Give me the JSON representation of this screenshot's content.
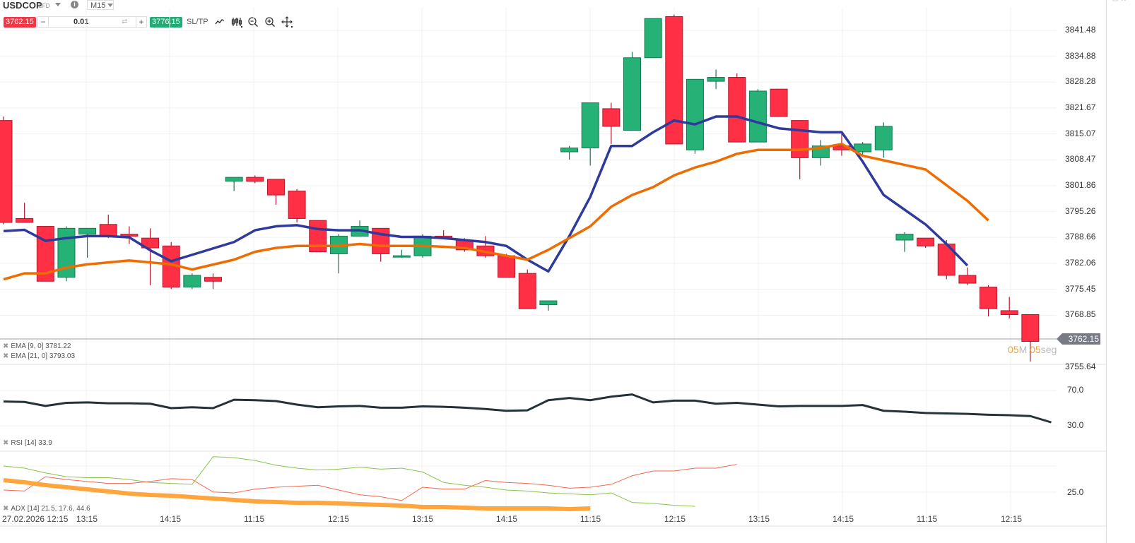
{
  "toolbar": {
    "symbol": "USDCOP",
    "symbol_type": "CFD",
    "info_icon": "i",
    "timeframe": "M15",
    "sell_price": "3762.15",
    "quantity": "0.01",
    "minus": "−",
    "plus": "+",
    "swap": "⇄",
    "buy_price": "3776.15",
    "sltp_label": "SL/TP",
    "tools": [
      "line-chart-icon",
      "candlestick-icon",
      "zoom-out-icon",
      "zoom-in-icon",
      "crosshair-move-icon"
    ]
  },
  "window_controls": "▭ ✕",
  "main_chart": {
    "price_axis": [
      "3841.48",
      "3834.88",
      "3828.28",
      "3821.67",
      "3815.07",
      "3808.47",
      "3801.86",
      "3795.26",
      "3788.66",
      "3782.06",
      "3775.45",
      "3768.85",
      "3755.64"
    ],
    "current_price": "3762.15",
    "countdown": {
      "min": "05",
      "min_unit": "M",
      "sec": "05",
      "sec_unit": "seg"
    },
    "legend": [
      {
        "label": "EMA [9, 0] 3781.22",
        "color": "#2e3a9c"
      },
      {
        "label": "EMA [21, 0] 3793.03",
        "color": "#ef6c00"
      }
    ]
  },
  "rsi_panel": {
    "axis": [
      "70.0",
      "30.0"
    ],
    "legend": "RSI [14] 33.9"
  },
  "adx_panel": {
    "axis": [
      "25.0"
    ],
    "legend": "ADX [14] 21.5, 17.6, 44.6"
  },
  "time_axis": [
    "27.02.2026 12:15",
    "13:15",
    "14:15",
    "11:15",
    "12:15",
    "13:15",
    "14:15",
    "11:15",
    "12:15",
    "13:15",
    "14:15",
    "11:15",
    "12:15"
  ],
  "colors": {
    "up": "#26b276",
    "down": "#ff2f45",
    "ema9": "#2e3a9c",
    "ema21": "#ef6c00",
    "rsi": "#263238",
    "adx": "#ffa53b",
    "di_plus": "#8bc34a",
    "di_minus": "#f4694f"
  },
  "chart_data": {
    "type": "candlestick",
    "title": "USDCOP CFD M15",
    "xlabel": "",
    "ylabel": "",
    "ylim": [
      3755.64,
      3845
    ],
    "grid": true,
    "legend_position": "bottom-left",
    "candles": [
      {
        "o": 3818.5,
        "h": 3819.5,
        "l": 3792.0,
        "c": 3792.5
      },
      {
        "o": 3793.5,
        "h": 3797.5,
        "l": 3792.5,
        "c": 3792.5
      },
      {
        "o": 3791.5,
        "h": 3791.5,
        "l": 3777.5,
        "c": 3777.5
      },
      {
        "o": 3778.5,
        "h": 3791.5,
        "l": 3777.5,
        "c": 3791.0
      },
      {
        "o": 3789.5,
        "h": 3791.0,
        "l": 3783.5,
        "c": 3791.0
      },
      {
        "o": 3792.0,
        "h": 3794.5,
        "l": 3788.5,
        "c": 3789.0
      },
      {
        "o": 3789.5,
        "h": 3791.5,
        "l": 3787.0,
        "c": 3789.0
      },
      {
        "o": 3788.5,
        "h": 3791.0,
        "l": 3776.5,
        "c": 3786.0
      },
      {
        "o": 3786.5,
        "h": 3787.5,
        "l": 3775.5,
        "c": 3776.0
      },
      {
        "o": 3776.0,
        "h": 3779.5,
        "l": 3775.5,
        "c": 3779.0
      },
      {
        "o": 3778.5,
        "h": 3779.5,
        "l": 3775.5,
        "c": 3777.5
      },
      {
        "o": 3803.0,
        "h": 3804.0,
        "l": 3800.5,
        "c": 3804.0
      },
      {
        "o": 3804.0,
        "h": 3804.5,
        "l": 3802.5,
        "c": 3803.0
      },
      {
        "o": 3803.5,
        "h": 3803.5,
        "l": 3797.0,
        "c": 3799.5
      },
      {
        "o": 3800.5,
        "h": 3801.0,
        "l": 3792.5,
        "c": 3793.5
      },
      {
        "o": 3793.0,
        "h": 3793.0,
        "l": 3785.0,
        "c": 3785.0
      },
      {
        "o": 3784.5,
        "h": 3789.5,
        "l": 3779.5,
        "c": 3789.0
      },
      {
        "o": 3789.0,
        "h": 3793.0,
        "l": 3789.0,
        "c": 3791.5
      },
      {
        "o": 3791.0,
        "h": 3791.0,
        "l": 3782.5,
        "c": 3784.5
      },
      {
        "o": 3784.0,
        "h": 3785.5,
        "l": 3783.5,
        "c": 3784.0
      },
      {
        "o": 3784.0,
        "h": 3789.5,
        "l": 3783.5,
        "c": 3789.0
      },
      {
        "o": 3789.0,
        "h": 3790.5,
        "l": 3788.5,
        "c": 3788.5
      },
      {
        "o": 3788.0,
        "h": 3788.5,
        "l": 3785.0,
        "c": 3785.5
      },
      {
        "o": 3786.5,
        "h": 3789.0,
        "l": 3783.5,
        "c": 3784.0
      },
      {
        "o": 3784.0,
        "h": 3784.5,
        "l": 3778.5,
        "c": 3778.5
      },
      {
        "o": 3779.5,
        "h": 3780.5,
        "l": 3770.5,
        "c": 3770.5
      },
      {
        "o": 3771.5,
        "h": 3772.5,
        "l": 3770.0,
        "c": 3772.5
      },
      {
        "o": 3810.5,
        "h": 3812.0,
        "l": 3808.5,
        "c": 3811.5
      },
      {
        "o": 3811.5,
        "h": 3821.5,
        "l": 3807.0,
        "c": 3823.0
      },
      {
        "o": 3821.5,
        "h": 3823.0,
        "l": 3812.5,
        "c": 3817.0
      },
      {
        "o": 3816.0,
        "h": 3836.0,
        "l": 3816.0,
        "c": 3834.5
      },
      {
        "o": 3834.5,
        "h": 3844.5,
        "l": 3834.5,
        "c": 3844.5
      },
      {
        "o": 3845.0,
        "h": 3845.5,
        "l": 3812.5,
        "c": 3812.5
      },
      {
        "o": 3811.0,
        "h": 3829.0,
        "l": 3810.0,
        "c": 3829.0
      },
      {
        "o": 3828.5,
        "h": 3831.5,
        "l": 3826.5,
        "c": 3829.5
      },
      {
        "o": 3829.5,
        "h": 3830.5,
        "l": 3813.0,
        "c": 3813.0
      },
      {
        "o": 3813.0,
        "h": 3826.5,
        "l": 3813.0,
        "c": 3826.0
      },
      {
        "o": 3826.5,
        "h": 3826.5,
        "l": 3819.5,
        "c": 3819.5
      },
      {
        "o": 3818.5,
        "h": 3818.5,
        "l": 3803.5,
        "c": 3809.0
      },
      {
        "o": 3809.0,
        "h": 3813.5,
        "l": 3807.0,
        "c": 3812.0
      },
      {
        "o": 3812.0,
        "h": 3815.0,
        "l": 3809.5,
        "c": 3811.0
      },
      {
        "o": 3810.5,
        "h": 3813.0,
        "l": 3809.5,
        "c": 3812.5
      },
      {
        "o": 3811.0,
        "h": 3818.0,
        "l": 3809.0,
        "c": 3817.0
      },
      {
        "o": 3788.0,
        "h": 3790.0,
        "l": 3785.0,
        "c": 3789.5
      },
      {
        "o": 3788.5,
        "h": 3788.5,
        "l": 3786.0,
        "c": 3786.5
      },
      {
        "o": 3787.0,
        "h": 3788.0,
        "l": 3778.0,
        "c": 3779.0
      },
      {
        "o": 3779.0,
        "h": 3781.0,
        "l": 3776.5,
        "c": 3777.0
      },
      {
        "o": 3776.0,
        "h": 3776.5,
        "l": 3768.5,
        "c": 3770.5
      },
      {
        "o": 3770.0,
        "h": 3773.5,
        "l": 3768.0,
        "c": 3769.0
      },
      {
        "o": 3769.0,
        "h": 3769.0,
        "l": 3757.0,
        "c": 3762.15
      }
    ],
    "series": [
      {
        "name": "EMA [9, 0]",
        "values": [
          3790.3,
          3790.6,
          3787.8,
          3788.5,
          3789.0,
          3789.0,
          3788.7,
          3785.4,
          3782.6,
          null,
          null,
          3787.5,
          3790.5,
          3791.5,
          3791.8,
          3790.8,
          3790.5,
          3790.5,
          3789.5,
          3788.8,
          3788.8,
          3788.5,
          3788.0,
          3787.5,
          3786.5,
          3783.0,
          3780.0,
          3789.0,
          3799.0,
          3812.0,
          3812.0,
          3815.5,
          3818.5,
          3817.5,
          3819.5,
          3819.5,
          3818.0,
          3816.5,
          3816.0,
          3815.5,
          3815.5,
          3808.0,
          3799.5,
          3792.0,
          3787.0,
          3781.5
        ]
      },
      {
        "name": "EMA [21, 0]",
        "values": [
          3778.0,
          3779.5,
          3779.5,
          3781.0,
          3781.8,
          3782.3,
          3782.8,
          3782.3,
          3781.8,
          3780.5,
          3783.0,
          3785.0,
          3786.0,
          3786.5,
          3786.5,
          3786.5,
          3787.0,
          3786.5,
          3786.5,
          3786.5,
          3786.3,
          3786.0,
          3785.0,
          3784.0,
          3783.0,
          3785.5,
          3788.5,
          3791.5,
          3796.5,
          3799.5,
          3801.5,
          3804.5,
          3806.5,
          3808.0,
          3810.0,
          3811.0,
          3811.0,
          3811.0,
          3811.5,
          3812.5,
          3809.5,
          3806.0,
          3802.0,
          3798.0,
          3793.0
        ]
      },
      {
        "name": "RSI [14]",
        "values": [
          57.5,
          57.0,
          52.5,
          56.0,
          56.5,
          55.5,
          55.5,
          55.0,
          50.0,
          51.0,
          50.0,
          59.5,
          59.0,
          58.0,
          54.0,
          51.0,
          52.0,
          52.5,
          50.5,
          50.5,
          52.0,
          51.5,
          50.5,
          49.0,
          47.0,
          47.5,
          59.0,
          61.5,
          59.0,
          63.0,
          65.5,
          56.5,
          58.5,
          58.5,
          55.0,
          56.0,
          54.0,
          52.0,
          52.5,
          52.5,
          52.5,
          53.5,
          47.0,
          46.0,
          44.5,
          44.0,
          43.5,
          42.5,
          42.0,
          41.0,
          33.9
        ]
      },
      {
        "name": "ADX [14]",
        "values": [
          41.5,
          40.0,
          38.0,
          36.5,
          35.0,
          33.5,
          32.0,
          31.0,
          30.5,
          29.5,
          28.5,
          27.5,
          26.5,
          26.0,
          25.5,
          25.5,
          25.0,
          24.5,
          24.0,
          23.5,
          22.5,
          22.5,
          22.0,
          21.5,
          21.5,
          21.5,
          21.5,
          21.0,
          21.5
        ]
      },
      {
        "name": "+DI",
        "values": [
          44.6,
          43.5,
          41.0,
          39.0,
          38.5,
          38.5,
          37.5,
          36.0,
          35.5,
          35.0,
          49.5,
          49.0,
          47.5,
          45.0,
          43.5,
          42.5,
          43.0,
          44.0,
          43.0,
          43.5,
          41.5,
          36.0,
          34.5,
          33.5,
          32.0,
          31.5,
          30.5,
          30.0,
          29.5,
          30.5,
          25.5,
          25.0,
          24.0,
          23.5
        ]
      },
      {
        "name": "-DI",
        "values": [
          32.0,
          31.5,
          39.0,
          37.5,
          36.5,
          35.5,
          35.5,
          36.5,
          38.0,
          37.5,
          31.0,
          30.5,
          32.5,
          33.5,
          34.0,
          34.5,
          32.0,
          29.5,
          28.5,
          26.5,
          33.5,
          32.5,
          32.5,
          37.0,
          36.0,
          35.5,
          34.5,
          33.0,
          33.5,
          35.0,
          39.5,
          42.0,
          42.0,
          43.5,
          43.5,
          45.5
        ]
      }
    ],
    "time_ticks": [
      "27.02.2026 12:15",
      "13:15",
      "14:15",
      "11:15",
      "12:15",
      "13:15",
      "14:15",
      "11:15",
      "12:15",
      "13:15",
      "14:15",
      "11:15",
      "12:15"
    ],
    "rsi_levels": [
      70,
      30
    ],
    "adx_level": 25
  }
}
